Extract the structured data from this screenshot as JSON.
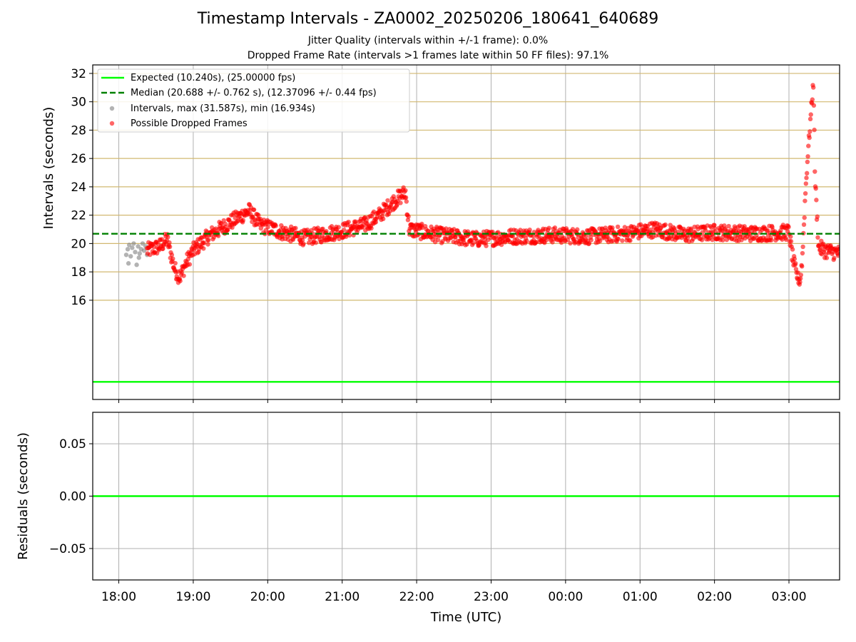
{
  "chart_data": [
    {
      "type": "scatter",
      "title": "Timestamp Intervals - ZA0002_20250206_180641_640689",
      "subtitles": [
        "Jitter Quality (intervals within +/-1 frame): 0.0%",
        "Dropped Frame Rate (intervals >1 frames late within 50 FF files): 97.1%"
      ],
      "ylabel": "Intervals (seconds)",
      "xlim_hours": [
        17.65,
        27.68
      ],
      "ylim": [
        9.0,
        32.6
      ],
      "yticks": [
        16,
        18,
        20,
        22,
        24,
        26,
        28,
        30,
        32
      ],
      "ytick_labels": [
        "16",
        "18",
        "20",
        "22",
        "24",
        "26",
        "28",
        "30",
        "32"
      ],
      "xticks_hours": [
        18,
        19,
        20,
        21,
        22,
        23,
        24,
        25,
        26,
        27
      ],
      "grid": "horizontal and vertical",
      "legend_position": "top-left",
      "reference_lines": [
        {
          "name": "Expected (10.240s), (25.00000 fps)",
          "value": 10.24,
          "color": "#00ff00",
          "style": "solid"
        },
        {
          "name": "Median (20.688 +/- 0.762 s), (12.37096 +/- 0.44 fps)",
          "value": 20.688,
          "color": "#008000",
          "style": "dashed"
        }
      ],
      "series": [
        {
          "name": "Intervals, max (31.587s), min (16.934s)",
          "color": "#808080",
          "x_range_hours": [
            18.1,
            18.4
          ],
          "points": [
            [
              18.1,
              19.2
            ],
            [
              18.12,
              19.6
            ],
            [
              18.14,
              19.9
            ],
            [
              18.16,
              19.1
            ],
            [
              18.18,
              19.7
            ],
            [
              18.2,
              20.0
            ],
            [
              18.22,
              19.4
            ],
            [
              18.24,
              18.5
            ],
            [
              18.26,
              19.8
            ],
            [
              18.28,
              19.3
            ],
            [
              18.3,
              19.6
            ],
            [
              18.32,
              20.0
            ],
            [
              18.34,
              19.5
            ],
            [
              18.36,
              19.8
            ],
            [
              18.38,
              19.2
            ],
            [
              18.4,
              19.7
            ],
            [
              18.13,
              18.6
            ],
            [
              18.27,
              19.0
            ]
          ]
        },
        {
          "name": "Possible Dropped Frames",
          "color": "#ff0000",
          "x_range_hours": [
            18.38,
            27.68
          ],
          "trend": [
            [
              18.38,
              19.5
            ],
            [
              18.55,
              19.8
            ],
            [
              18.65,
              20.3
            ],
            [
              18.75,
              18.2
            ],
            [
              18.82,
              17.6
            ],
            [
              18.9,
              18.6
            ],
            [
              19.0,
              19.5
            ],
            [
              19.2,
              20.5
            ],
            [
              19.5,
              21.5
            ],
            [
              19.75,
              22.3
            ],
            [
              19.9,
              21.3
            ],
            [
              20.2,
              20.8
            ],
            [
              20.5,
              20.4
            ],
            [
              20.8,
              20.7
            ],
            [
              21.0,
              20.9
            ],
            [
              21.3,
              21.3
            ],
            [
              21.5,
              22.0
            ],
            [
              21.7,
              23.0
            ],
            [
              21.85,
              23.6
            ],
            [
              21.9,
              21.0
            ],
            [
              22.3,
              20.6
            ],
            [
              22.8,
              20.3
            ],
            [
              23.3,
              20.5
            ],
            [
              23.8,
              20.6
            ],
            [
              24.3,
              20.5
            ],
            [
              24.8,
              20.7
            ],
            [
              25.2,
              21.0
            ],
            [
              25.6,
              20.6
            ],
            [
              26.0,
              20.8
            ],
            [
              26.5,
              20.7
            ],
            [
              27.0,
              20.8
            ],
            [
              27.05,
              19.0
            ],
            [
              27.1,
              17.8
            ],
            [
              27.15,
              17.3
            ],
            [
              27.18,
              19.0
            ],
            [
              27.22,
              23.5
            ],
            [
              27.25,
              26.0
            ],
            [
              27.3,
              29.5
            ],
            [
              27.33,
              31.5
            ],
            [
              27.35,
              24.5
            ],
            [
              27.4,
              19.7
            ],
            [
              27.5,
              19.5
            ],
            [
              27.68,
              19.3
            ]
          ]
        }
      ]
    },
    {
      "type": "line",
      "ylabel": "Residuals (seconds)",
      "xlabel": "Time (UTC)",
      "ylim": [
        -0.08,
        0.08
      ],
      "yticks": [
        -0.05,
        0.0,
        0.05
      ],
      "ytick_labels": [
        "−0.05",
        "0.00",
        "0.05"
      ],
      "xticks_hours": [
        18,
        19,
        20,
        21,
        22,
        23,
        24,
        25,
        26,
        27
      ],
      "xtick_labels": [
        "18:00",
        "19:00",
        "20:00",
        "21:00",
        "22:00",
        "23:00",
        "00:00",
        "01:00",
        "02:00",
        "03:00"
      ],
      "grid": "horizontal and vertical",
      "series": [
        {
          "name": "Residuals",
          "color": "#00ff00",
          "values": [
            0.0,
            0.0
          ]
        }
      ]
    }
  ]
}
